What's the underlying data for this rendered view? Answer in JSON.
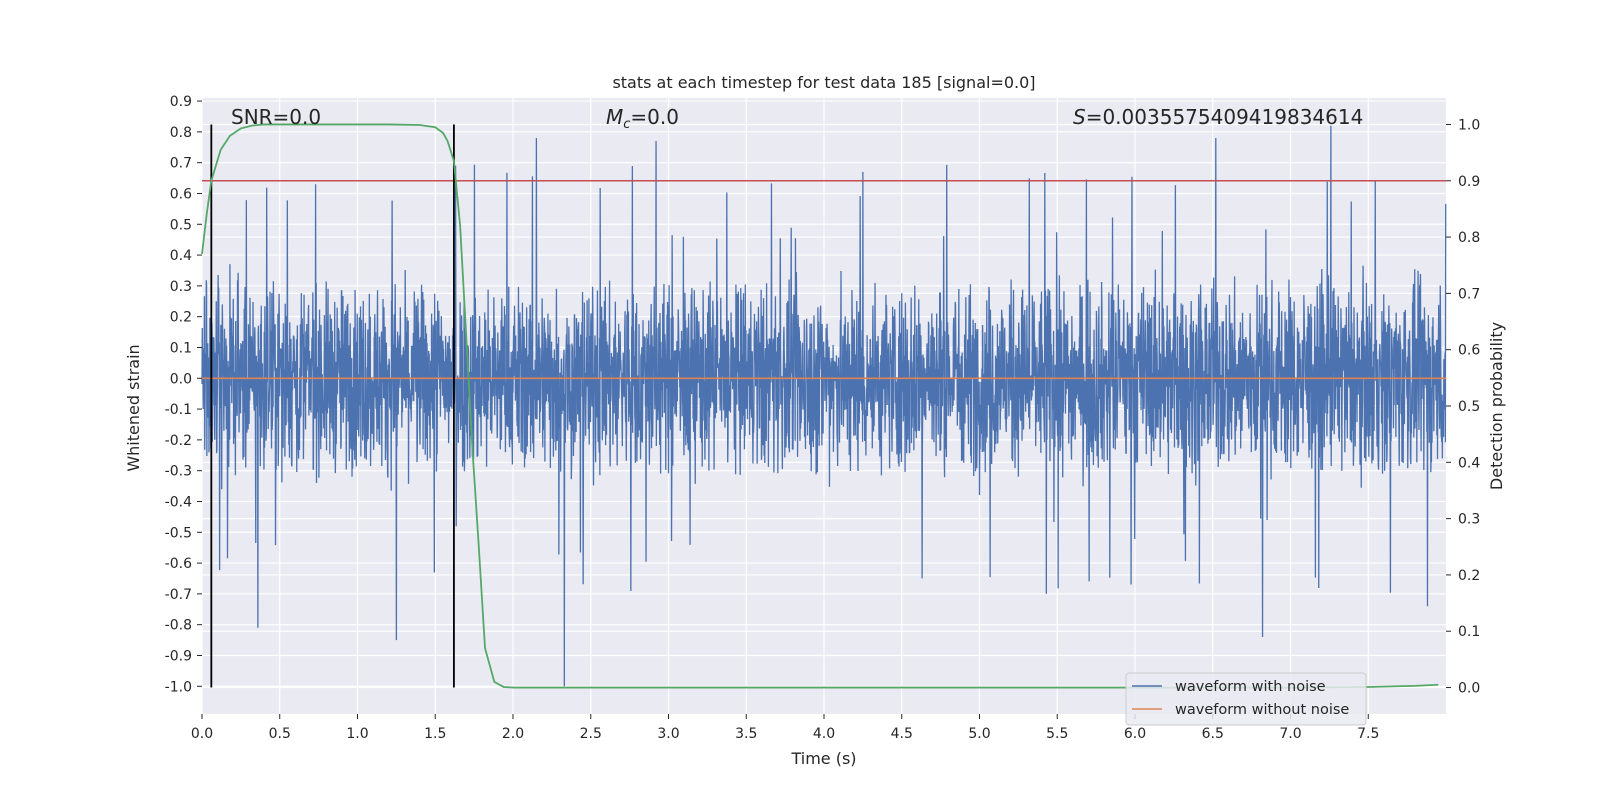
{
  "chart_data": {
    "type": "line",
    "title": "stats at each timestep for test data 185 [signal=0.0]",
    "xlabel": "Time (s)",
    "ylabel": "Whitened strain",
    "y2label": "Detection probability",
    "xlim": [
      0.0,
      8.0
    ],
    "ylim": [
      -1.09,
      0.91
    ],
    "y2lim": [
      -0.047,
      1.047
    ],
    "grid": true,
    "xticks": [
      "0.0",
      "0.5",
      "1.0",
      "1.5",
      "2.0",
      "2.5",
      "3.0",
      "3.5",
      "4.0",
      "4.5",
      "5.0",
      "5.5",
      "6.0",
      "6.5",
      "7.0",
      "7.5"
    ],
    "yticks": [
      "0.9",
      "0.8",
      "0.7",
      "0.6",
      "0.5",
      "0.4",
      "0.3",
      "0.2",
      "0.1",
      "0.0",
      "-0.1",
      "-0.2",
      "-0.3",
      "-0.4",
      "-0.5",
      "-0.6",
      "-0.7",
      "-0.8",
      "-0.9",
      "-1.0"
    ],
    "y2ticks": [
      "1.0",
      "0.9",
      "0.8",
      "0.7",
      "0.6",
      "0.5",
      "0.4",
      "0.3",
      "0.2",
      "0.1",
      "0.0"
    ],
    "annotations": {
      "snr": "SNR=0.0",
      "mc": "=0.0",
      "mc_symbol": "M",
      "mc_sub": "c",
      "s": "=0.0035575409419834614",
      "s_symbol": "S"
    },
    "threshold_y2": 0.9,
    "vertical_lines_x": [
      0.06,
      1.62
    ],
    "series": [
      {
        "name": "waveform with noise",
        "color": "#4c72b0",
        "kind": "noise",
        "sample_rate": 512,
        "core_amplitude": 0.27,
        "peaks": [
          {
            "x": 0.36,
            "y": -0.81
          },
          {
            "x": 0.73,
            "y": 0.63
          },
          {
            "x": 1.25,
            "y": -0.85
          },
          {
            "x": 1.63,
            "y": 0.69
          },
          {
            "x": 2.15,
            "y": 0.78
          },
          {
            "x": 2.33,
            "y": -1.0
          },
          {
            "x": 2.92,
            "y": 0.77
          },
          {
            "x": 4.25,
            "y": 0.67
          },
          {
            "x": 5.43,
            "y": -0.7
          },
          {
            "x": 6.52,
            "y": 0.78
          },
          {
            "x": 6.82,
            "y": -0.84
          },
          {
            "x": 7.26,
            "y": 0.82
          },
          {
            "x": 7.88,
            "y": -0.74
          }
        ]
      },
      {
        "name": "waveform without noise",
        "color": "#dd8452",
        "x": [
          0.0,
          8.0
        ],
        "y": [
          0.0,
          0.0
        ]
      },
      {
        "name": "detection probability",
        "color": "#55a868",
        "axis": "y2",
        "x": [
          0.0,
          0.03,
          0.06,
          0.12,
          0.18,
          0.25,
          0.32,
          0.4,
          0.6,
          0.8,
          1.0,
          1.2,
          1.4,
          1.5,
          1.55,
          1.58,
          1.62,
          1.66,
          1.7,
          1.74,
          1.78,
          1.82,
          1.88,
          1.94,
          2.0,
          3.0,
          4.0,
          5.0,
          6.0,
          7.0,
          7.5,
          7.8,
          7.95
        ],
        "y": [
          0.77,
          0.84,
          0.9,
          0.955,
          0.98,
          0.993,
          0.998,
          1.0,
          1.0,
          1.0,
          1.0,
          1.0,
          0.999,
          0.995,
          0.985,
          0.97,
          0.935,
          0.82,
          0.62,
          0.42,
          0.25,
          0.07,
          0.01,
          0.001,
          0.0,
          0.0,
          0.0,
          0.0,
          0.0,
          0.0,
          0.001,
          0.003,
          0.005
        ]
      }
    ],
    "legend": {
      "placement": "lower-right",
      "entries": [
        {
          "label": "waveform with noise",
          "color": "#4c72b0"
        },
        {
          "label": "waveform without noise",
          "color": "#dd8452"
        }
      ]
    }
  }
}
